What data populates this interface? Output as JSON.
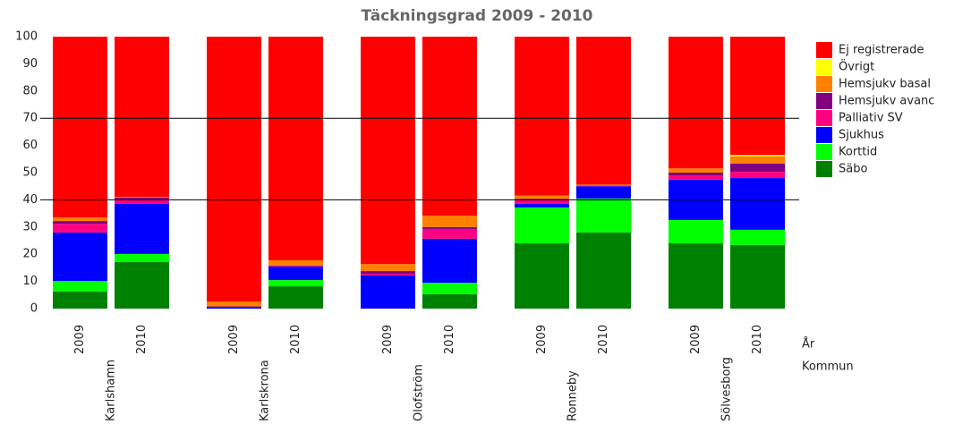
{
  "chart_data": {
    "type": "stacked_bar",
    "title": "Täckningsgrad 2009 - 2010",
    "categories": [
      "2009",
      "2010",
      "2009",
      "2010",
      "2009",
      "2010",
      "2009",
      "2010",
      "2009",
      "2010"
    ],
    "groups": [
      "Karlshamn",
      "Karlskrona",
      "Olofström",
      "Ronneby",
      "Sölvesborg"
    ],
    "x_label": "År",
    "group_label": "Kommun",
    "ylim": [
      0,
      100
    ],
    "yticks": [
      0,
      10,
      20,
      30,
      40,
      50,
      60,
      70,
      80,
      90,
      100
    ],
    "reference_lines": [
      40,
      70
    ],
    "series": [
      {
        "name": "Säbo",
        "color": "#008000",
        "values": [
          6.3,
          17.1,
          0,
          8.2,
          0,
          5.3,
          24,
          28,
          24,
          23.4
        ]
      },
      {
        "name": "Korttid",
        "color": "#00ff00",
        "values": [
          3.9,
          3,
          0,
          2.3,
          0,
          4.2,
          13.2,
          12.5,
          8.6,
          5.6
        ]
      },
      {
        "name": "Sjukhus",
        "color": "#0000ff",
        "values": [
          17.8,
          18.4,
          0.6,
          5,
          12.2,
          16.2,
          1.3,
          4.5,
          14.8,
          19
        ]
      },
      {
        "name": "Palliativ SV",
        "color": "#ff0080",
        "values": [
          3.2,
          1.6,
          0,
          0.3,
          0.5,
          3.6,
          1.6,
          0.3,
          1.6,
          2.3
        ]
      },
      {
        "name": "Hemsjukv avanc",
        "color": "#800080",
        "values": [
          1,
          0.7,
          0.2,
          0,
          1.1,
          0.7,
          0.3,
          0,
          1,
          3
        ]
      },
      {
        "name": "Hemsjukv basal",
        "color": "#ff8000",
        "values": [
          1.3,
          0.3,
          1.8,
          2,
          2.6,
          4.2,
          1.2,
          0.3,
          1.6,
          2.7
        ]
      },
      {
        "name": "Övrigt",
        "color": "#ffff00",
        "values": [
          0,
          0,
          0,
          0,
          0,
          0,
          0,
          0,
          0,
          0.5
        ]
      },
      {
        "name": "Ej registrerade",
        "color": "#ff0000",
        "values": [
          66.5,
          58.9,
          97.4,
          82.2,
          83.6,
          65.8,
          58.4,
          54.4,
          48.4,
          43.5
        ]
      }
    ]
  }
}
